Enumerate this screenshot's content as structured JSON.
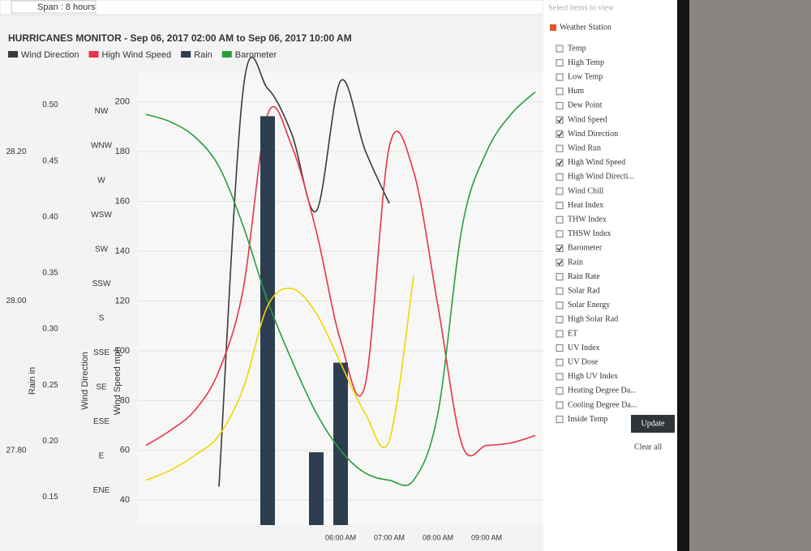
{
  "toolbar": {
    "span": "Span : 8 hours"
  },
  "chart_data": {
    "type": "line",
    "title": "HURRICANES MONITOR - Sep 06, 2017 02:00 AM to Sep 06, 2017 10:00 AM",
    "categories": [
      null,
      null,
      null,
      null,
      null,
      null,
      null,
      null,
      "06:00 AM",
      null,
      "07:00 AM",
      null,
      "08:00 AM",
      null,
      "09:00 AM",
      null,
      null
    ],
    "series": [
      {
        "name": "Wind Direction",
        "color": "#3a3a3a",
        "axis": "y2",
        "values": [
          null,
          null,
          null,
          70,
          330,
          330,
          300,
          250,
          335,
          290,
          255,
          null,
          null,
          null,
          null,
          null,
          null
        ]
      },
      {
        "name": "High Wind Speed",
        "color": "#e8334a",
        "axis": "y",
        "values": [
          62,
          68,
          76,
          92,
          125,
          195,
          182,
          148,
          104,
          86,
          182,
          172,
          118,
          62,
          62,
          63,
          66
        ]
      },
      {
        "name": "Rain",
        "color": "#2c3e50",
        "axis": "y3",
        "type": "bar",
        "values": [
          0,
          0,
          0,
          0,
          0,
          0.49,
          0,
          0.19,
          0.27,
          0,
          0,
          0,
          0,
          0,
          0,
          0,
          0
        ]
      },
      {
        "name": "Barometer",
        "color": "#2a9d3a",
        "axis": "y4",
        "values": [
          28.25,
          28.24,
          28.22,
          28.18,
          28.1,
          28.0,
          27.92,
          27.85,
          27.8,
          27.77,
          27.76,
          27.76,
          27.85,
          28.1,
          28.2,
          28.25,
          28.28
        ]
      },
      {
        "color": "#f2d600",
        "axis": "y",
        "values": [
          48,
          52,
          58,
          66,
          85,
          118,
          125,
          115,
          95,
          75,
          64,
          130,
          null,
          null,
          null,
          null,
          null
        ]
      }
    ],
    "ylabel": "Wind Speed mph",
    "ylim": [
      30,
      210
    ],
    "yticks": [
      40,
      60,
      80,
      100,
      120,
      140,
      160,
      180,
      200
    ],
    "y2label": "Wind Direction",
    "y2lim": [
      45,
      337.5
    ],
    "y2ticks": [
      {
        "value": 67.5,
        "label": "ENE"
      },
      {
        "value": 90,
        "label": "E"
      },
      {
        "value": 112.5,
        "label": "ESE"
      },
      {
        "value": 135,
        "label": "SE"
      },
      {
        "value": 157.5,
        "label": "SSE"
      },
      {
        "value": 180,
        "label": "S"
      },
      {
        "value": 202.5,
        "label": "SSW"
      },
      {
        "value": 225,
        "label": "SW"
      },
      {
        "value": 247.5,
        "label": "WSW"
      },
      {
        "value": 270,
        "label": "W"
      },
      {
        "value": 292.5,
        "label": "WNW"
      },
      {
        "value": 315,
        "label": "NW"
      }
    ],
    "y3label": "Rain in",
    "y3lim": [
      0.125,
      0.525
    ],
    "y3ticks": [
      {
        "value": 0.15,
        "label": "0.15"
      },
      {
        "value": 0.2,
        "label": "0.20"
      },
      {
        "value": 0.25,
        "label": "0.25"
      },
      {
        "value": 0.3,
        "label": "0.30"
      },
      {
        "value": 0.35,
        "label": "0.35"
      },
      {
        "value": 0.4,
        "label": "0.40"
      },
      {
        "value": 0.45,
        "label": "0.45"
      },
      {
        "value": 0.5,
        "label": "0.50"
      }
    ],
    "y4lim": [
      27.7,
      28.3
    ],
    "y4ticks": [
      {
        "value": 27.8,
        "label": "27.80"
      },
      {
        "value": 28,
        "label": "28.00"
      },
      {
        "value": 28.2,
        "label": "28.20"
      }
    ],
    "grid": true
  },
  "sidebar": {
    "heading": "Select items to view",
    "station": "Weather Station",
    "items": [
      {
        "label": "Temp",
        "checked": false
      },
      {
        "label": "High Temp",
        "checked": false
      },
      {
        "label": "Low Temp",
        "checked": false
      },
      {
        "label": "Hum",
        "checked": false
      },
      {
        "label": "Dew Point",
        "checked": false
      },
      {
        "label": "Wind Speed",
        "checked": true
      },
      {
        "label": "Wind Direction",
        "checked": true
      },
      {
        "label": "Wind Run",
        "checked": false
      },
      {
        "label": "High Wind Speed",
        "checked": true
      },
      {
        "label": "High Wind Directi...",
        "checked": false
      },
      {
        "label": "Wind Chill",
        "checked": false
      },
      {
        "label": "Heat Index",
        "checked": false
      },
      {
        "label": "THW Index",
        "checked": false
      },
      {
        "label": "THSW Index",
        "checked": false
      },
      {
        "label": "Barometer",
        "checked": true
      },
      {
        "label": "Rain",
        "checked": true
      },
      {
        "label": "Rain Rate",
        "checked": false
      },
      {
        "label": "Solar Rad",
        "checked": false
      },
      {
        "label": "Solar Energy",
        "checked": false
      },
      {
        "label": "High Solar Rad",
        "checked": false
      },
      {
        "label": "ET",
        "checked": false
      },
      {
        "label": "UV Index",
        "checked": false
      },
      {
        "label": "UV Dose",
        "checked": false
      },
      {
        "label": "High UV Index",
        "checked": false
      },
      {
        "label": "Heating Degree Da...",
        "checked": false
      },
      {
        "label": "Cooling Degree Da...",
        "checked": false
      },
      {
        "label": "Inside Temp",
        "checked": false
      }
    ],
    "update": "Update",
    "clear": "Clear all"
  }
}
